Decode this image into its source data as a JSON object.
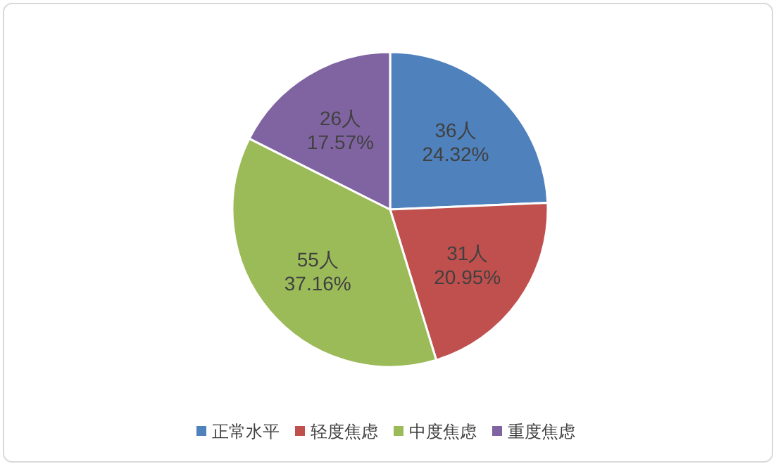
{
  "chart_data": {
    "type": "pie",
    "categories": [
      "正常水平",
      "轻度焦虑",
      "中度焦虑",
      "重度焦虑"
    ],
    "values": [
      36,
      31,
      55,
      26
    ],
    "colors": [
      "#4f81bd",
      "#c0504d",
      "#9bbb59",
      "#8064a2"
    ],
    "value_labels": [
      "36人\n24.32%",
      "31人\n20.95%",
      "55人\n37.16%",
      "26人\n17.57%"
    ],
    "legend": "bottom"
  }
}
